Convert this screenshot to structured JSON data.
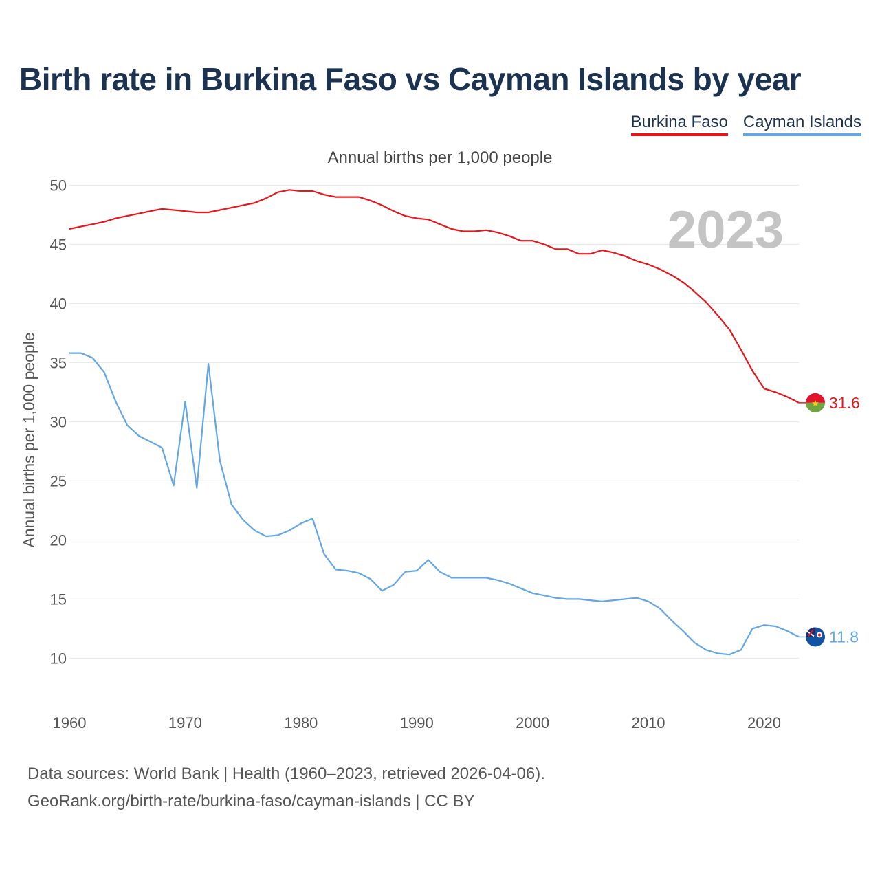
{
  "title": "Birth rate in Burkina Faso vs Cayman Islands by year",
  "subtitle": "Annual births per 1,000 people",
  "legend": [
    {
      "label": "Burkina Faso",
      "color": "#e8161b"
    },
    {
      "label": "Cayman Islands",
      "color": "#62a6e6"
    }
  ],
  "year_label": "2023",
  "source_line1": "Data sources: World Bank | Health (1960–2023, retrieved 2026-04-06).",
  "source_line2": "GeoRank.org/birth-rate/burkina-faso/cayman-islands | CC BY",
  "chart_data": {
    "type": "line",
    "title": "Birth rate in Burkina Faso vs Cayman Islands by year",
    "xlabel": "",
    "ylabel": "Annual births per 1,000 people",
    "xlim": [
      1960,
      2023
    ],
    "ylim": [
      7,
      52
    ],
    "grid": true,
    "legend_position": "top-right",
    "x_ticks": [
      1960,
      1970,
      1980,
      1990,
      2000,
      2010,
      2020
    ],
    "y_ticks": [
      10,
      15,
      20,
      25,
      30,
      35,
      40,
      45,
      50
    ],
    "x": [
      1960,
      1961,
      1962,
      1963,
      1964,
      1965,
      1966,
      1967,
      1968,
      1969,
      1970,
      1971,
      1972,
      1973,
      1974,
      1975,
      1976,
      1977,
      1978,
      1979,
      1980,
      1981,
      1982,
      1983,
      1984,
      1985,
      1986,
      1987,
      1988,
      1989,
      1990,
      1991,
      1992,
      1993,
      1994,
      1995,
      1996,
      1997,
      1998,
      1999,
      2000,
      2001,
      2002,
      2003,
      2004,
      2005,
      2006,
      2007,
      2008,
      2009,
      2010,
      2011,
      2012,
      2013,
      2014,
      2015,
      2016,
      2017,
      2018,
      2019,
      2020,
      2021,
      2022,
      2023
    ],
    "series": [
      {
        "name": "Burkina Faso",
        "color": "#e8161b",
        "end_label": "31.6",
        "values": [
          46.3,
          46.5,
          46.7,
          46.9,
          47.2,
          47.4,
          47.6,
          47.8,
          48.0,
          47.9,
          47.8,
          47.7,
          47.7,
          47.9,
          48.1,
          48.3,
          48.5,
          48.9,
          49.4,
          49.6,
          49.5,
          49.5,
          49.2,
          49.0,
          49.0,
          49.0,
          48.7,
          48.3,
          47.8,
          47.4,
          47.2,
          47.1,
          46.7,
          46.3,
          46.1,
          46.1,
          46.2,
          46.0,
          45.7,
          45.3,
          45.3,
          45.0,
          44.6,
          44.6,
          44.2,
          44.2,
          44.5,
          44.3,
          44.0,
          43.6,
          43.3,
          42.9,
          42.4,
          41.8,
          41.0,
          40.1,
          39.0,
          37.8,
          36.1,
          34.3,
          32.8,
          32.5,
          32.1,
          31.6
        ]
      },
      {
        "name": "Cayman Islands",
        "color": "#62a6e6",
        "end_label": "11.8",
        "values": [
          35.8,
          35.8,
          35.4,
          34.2,
          31.7,
          29.7,
          28.8,
          28.3,
          27.8,
          24.6,
          31.7,
          24.4,
          34.9,
          26.7,
          23.0,
          21.7,
          20.8,
          20.3,
          20.4,
          20.8,
          21.4,
          21.8,
          18.8,
          17.5,
          17.4,
          17.2,
          16.7,
          15.7,
          16.2,
          17.3,
          17.4,
          18.3,
          17.3,
          16.8,
          16.8,
          16.8,
          16.8,
          16.6,
          16.3,
          15.9,
          15.5,
          15.3,
          15.1,
          15.0,
          15.0,
          14.9,
          14.8,
          14.9,
          15.0,
          15.1,
          14.8,
          14.2,
          13.2,
          12.3,
          11.3,
          10.7,
          10.4,
          10.3,
          10.7,
          12.5,
          12.8,
          12.7,
          12.3,
          11.8
        ]
      }
    ]
  }
}
